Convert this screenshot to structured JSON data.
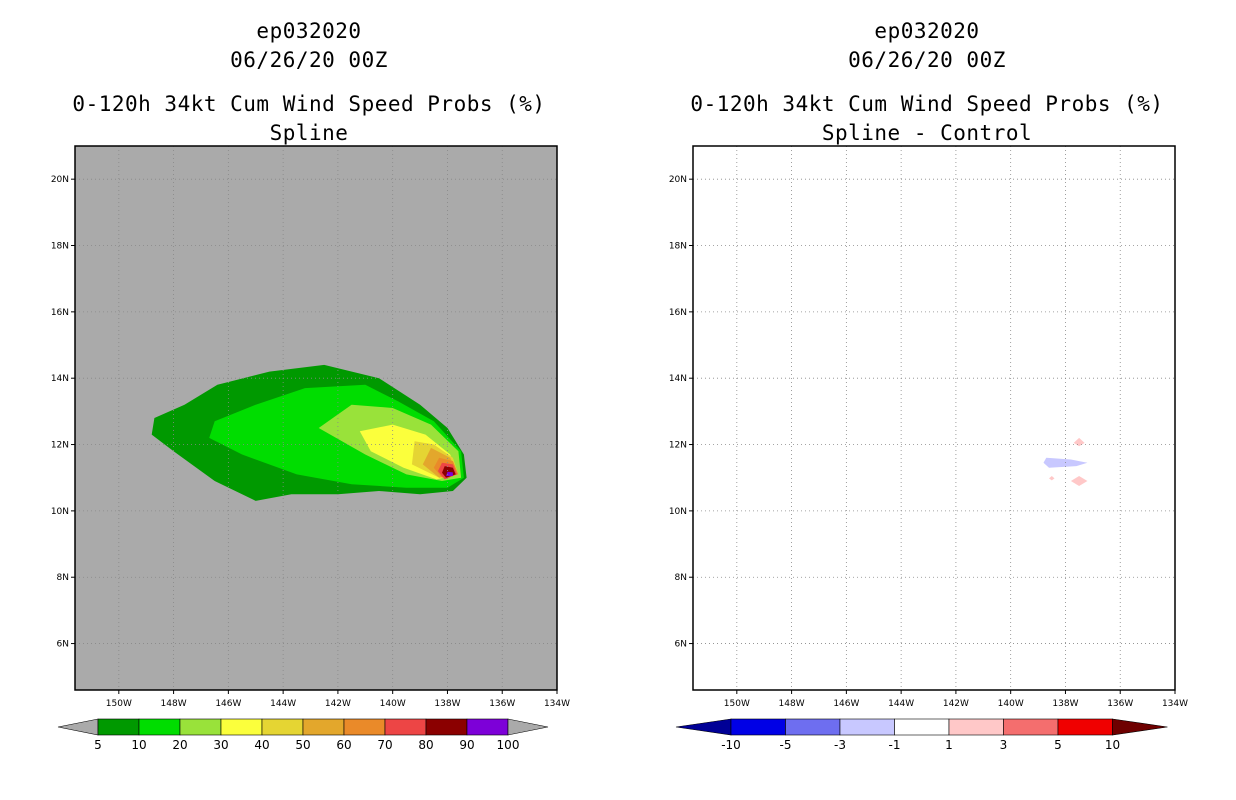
{
  "chart_data": [
    {
      "type": "heatmap",
      "storm_id": "ep032020",
      "datetime": "06/26/20 00Z",
      "title": "0-120h 34kt Cum Wind Speed Probs (%)",
      "subtitle": "Spline",
      "x_ticks": [
        "150W",
        "148W",
        "146W",
        "144W",
        "142W",
        "140W",
        "138W",
        "136W",
        "134W"
      ],
      "y_ticks": [
        "6N",
        "8N",
        "10N",
        "12N",
        "14N",
        "16N",
        "18N",
        "20N"
      ],
      "xlim": [
        -151.6,
        -134.0
      ],
      "ylim": [
        4.6,
        21.0
      ],
      "background_color": "#aaaaaa",
      "grid": true,
      "colorbar": {
        "labels": [
          "5",
          "10",
          "20",
          "30",
          "40",
          "50",
          "60",
          "70",
          "80",
          "90",
          "100"
        ],
        "colors": [
          "#009900",
          "#00dd00",
          "#99e23a",
          "#fbff3c",
          "#e5d533",
          "#e3a72c",
          "#ea8a29",
          "#ed4545",
          "#8b0000",
          "#7d00d8"
        ],
        "under_color": "#aaaaaa",
        "over_color": "#aaaaaa"
      },
      "contours": [
        {
          "level": "5",
          "color": "#009900",
          "points": [
            [
              -147.6,
              13.2
            ],
            [
              -146.4,
              13.8
            ],
            [
              -144.5,
              14.2
            ],
            [
              -142.5,
              14.4
            ],
            [
              -140.5,
              14.0
            ],
            [
              -139.0,
              13.2
            ],
            [
              -138.0,
              12.5
            ],
            [
              -137.4,
              11.7
            ],
            [
              -137.3,
              11.0
            ],
            [
              -137.8,
              10.6
            ],
            [
              -139.0,
              10.5
            ],
            [
              -140.5,
              10.6
            ],
            [
              -142.0,
              10.5
            ],
            [
              -143.7,
              10.5
            ],
            [
              -145.0,
              10.3
            ],
            [
              -146.5,
              10.9
            ],
            [
              -148.0,
              11.8
            ],
            [
              -148.8,
              12.3
            ],
            [
              -148.7,
              12.8
            ]
          ]
        },
        {
          "level": "10",
          "color": "#00dd00",
          "points": [
            [
              -146.5,
              12.7
            ],
            [
              -145.0,
              13.2
            ],
            [
              -143.2,
              13.7
            ],
            [
              -141.0,
              13.8
            ],
            [
              -139.8,
              13.3
            ],
            [
              -138.5,
              12.7
            ],
            [
              -137.5,
              11.8
            ],
            [
              -137.4,
              11.0
            ],
            [
              -138.0,
              10.7
            ],
            [
              -139.5,
              10.7
            ],
            [
              -141.5,
              10.8
            ],
            [
              -143.5,
              11.1
            ],
            [
              -145.5,
              11.7
            ],
            [
              -146.7,
              12.2
            ]
          ]
        },
        {
          "level": "20",
          "color": "#99e23a",
          "points": [
            [
              -142.7,
              12.5
            ],
            [
              -141.5,
              13.2
            ],
            [
              -140.0,
              13.1
            ],
            [
              -138.6,
              12.6
            ],
            [
              -137.6,
              11.8
            ],
            [
              -137.5,
              11.0
            ],
            [
              -138.2,
              10.9
            ],
            [
              -139.5,
              11.1
            ],
            [
              -141.0,
              11.7
            ]
          ]
        },
        {
          "level": "30",
          "color": "#fbff3c",
          "points": [
            [
              -141.2,
              12.4
            ],
            [
              -140.0,
              12.6
            ],
            [
              -138.8,
              12.3
            ],
            [
              -137.9,
              11.7
            ],
            [
              -137.6,
              11.1
            ],
            [
              -138.4,
              10.95
            ],
            [
              -139.6,
              11.3
            ],
            [
              -140.8,
              11.8
            ]
          ]
        },
        {
          "level": "40",
          "color": "#e5d533",
          "points": [
            [
              -139.2,
              12.1
            ],
            [
              -138.5,
              12.0
            ],
            [
              -137.8,
              11.6
            ],
            [
              -137.6,
              11.1
            ],
            [
              -138.3,
              11.0
            ],
            [
              -139.3,
              11.4
            ]
          ]
        },
        {
          "level": "50",
          "color": "#e3a72c",
          "points": [
            [
              -138.6,
              11.9
            ],
            [
              -137.9,
              11.6
            ],
            [
              -137.6,
              11.1
            ],
            [
              -138.3,
              11.0
            ],
            [
              -138.9,
              11.4
            ]
          ]
        },
        {
          "level": "60",
          "color": "#ea8a29",
          "points": [
            [
              -138.3,
              11.6
            ],
            [
              -137.8,
              11.5
            ],
            [
              -137.6,
              11.1
            ],
            [
              -138.2,
              11.0
            ],
            [
              -138.5,
              11.3
            ]
          ]
        },
        {
          "level": "70",
          "color": "#ed4545",
          "points": [
            [
              -138.2,
              11.45
            ],
            [
              -137.8,
              11.4
            ],
            [
              -137.65,
              11.1
            ],
            [
              -138.1,
              10.95
            ],
            [
              -138.35,
              11.2
            ]
          ]
        },
        {
          "level": "80",
          "color": "#8b0000",
          "points": [
            [
              -138.1,
              11.35
            ],
            [
              -137.8,
              11.3
            ],
            [
              -137.7,
              11.1
            ],
            [
              -138.05,
              11.0
            ],
            [
              -138.2,
              11.15
            ]
          ]
        },
        {
          "level": "90",
          "color": "#7d00d8",
          "points": [
            [
              -138.0,
              11.18
            ],
            [
              -137.8,
              11.16
            ],
            [
              -137.8,
              11.05
            ],
            [
              -138.05,
              11.05
            ]
          ]
        }
      ]
    },
    {
      "type": "heatmap",
      "storm_id": "ep032020",
      "datetime": "06/26/20 00Z",
      "title": "0-120h 34kt Cum Wind Speed Probs (%)",
      "subtitle": "Spline - Control",
      "x_ticks": [
        "150W",
        "148W",
        "146W",
        "144W",
        "142W",
        "140W",
        "138W",
        "136W",
        "134W"
      ],
      "y_ticks": [
        "6N",
        "8N",
        "10N",
        "12N",
        "14N",
        "16N",
        "18N",
        "20N"
      ],
      "xlim": [
        -151.6,
        -134.0
      ],
      "ylim": [
        4.6,
        21.0
      ],
      "background_color": "#ffffff",
      "grid": true,
      "colorbar": {
        "labels": [
          "-10",
          "-5",
          "-3",
          "-1",
          "1",
          "3",
          "5",
          "10"
        ],
        "colors": [
          "#0000e6",
          "#6e6ef0",
          "#c8c8ff",
          "#ffffff",
          "#ffc8c8",
          "#f46e6e",
          "#f00000"
        ],
        "under_color": "#000096",
        "over_color": "#6e0000"
      },
      "contours": [
        {
          "level": "-3",
          "color": "#c8c8ff",
          "points": [
            [
              -138.7,
              11.6
            ],
            [
              -137.8,
              11.55
            ],
            [
              -137.2,
              11.45
            ],
            [
              -137.6,
              11.35
            ],
            [
              -138.6,
              11.3
            ],
            [
              -138.8,
              11.45
            ]
          ]
        },
        {
          "level": "3",
          "color": "#ffc8c8",
          "points": [
            [
              -137.5,
              12.2
            ],
            [
              -137.3,
              12.05
            ],
            [
              -137.5,
              11.95
            ],
            [
              -137.7,
              12.05
            ]
          ]
        },
        {
          "level": "3",
          "color": "#ffc8c8",
          "points": [
            [
              -137.5,
              11.05
            ],
            [
              -137.2,
              10.9
            ],
            [
              -137.5,
              10.75
            ],
            [
              -137.8,
              10.9
            ]
          ]
        },
        {
          "level": "3",
          "color": "#ffc8c8",
          "points": [
            [
              -138.5,
              11.05
            ],
            [
              -138.4,
              10.98
            ],
            [
              -138.5,
              10.92
            ],
            [
              -138.6,
              10.98
            ]
          ]
        }
      ]
    }
  ]
}
